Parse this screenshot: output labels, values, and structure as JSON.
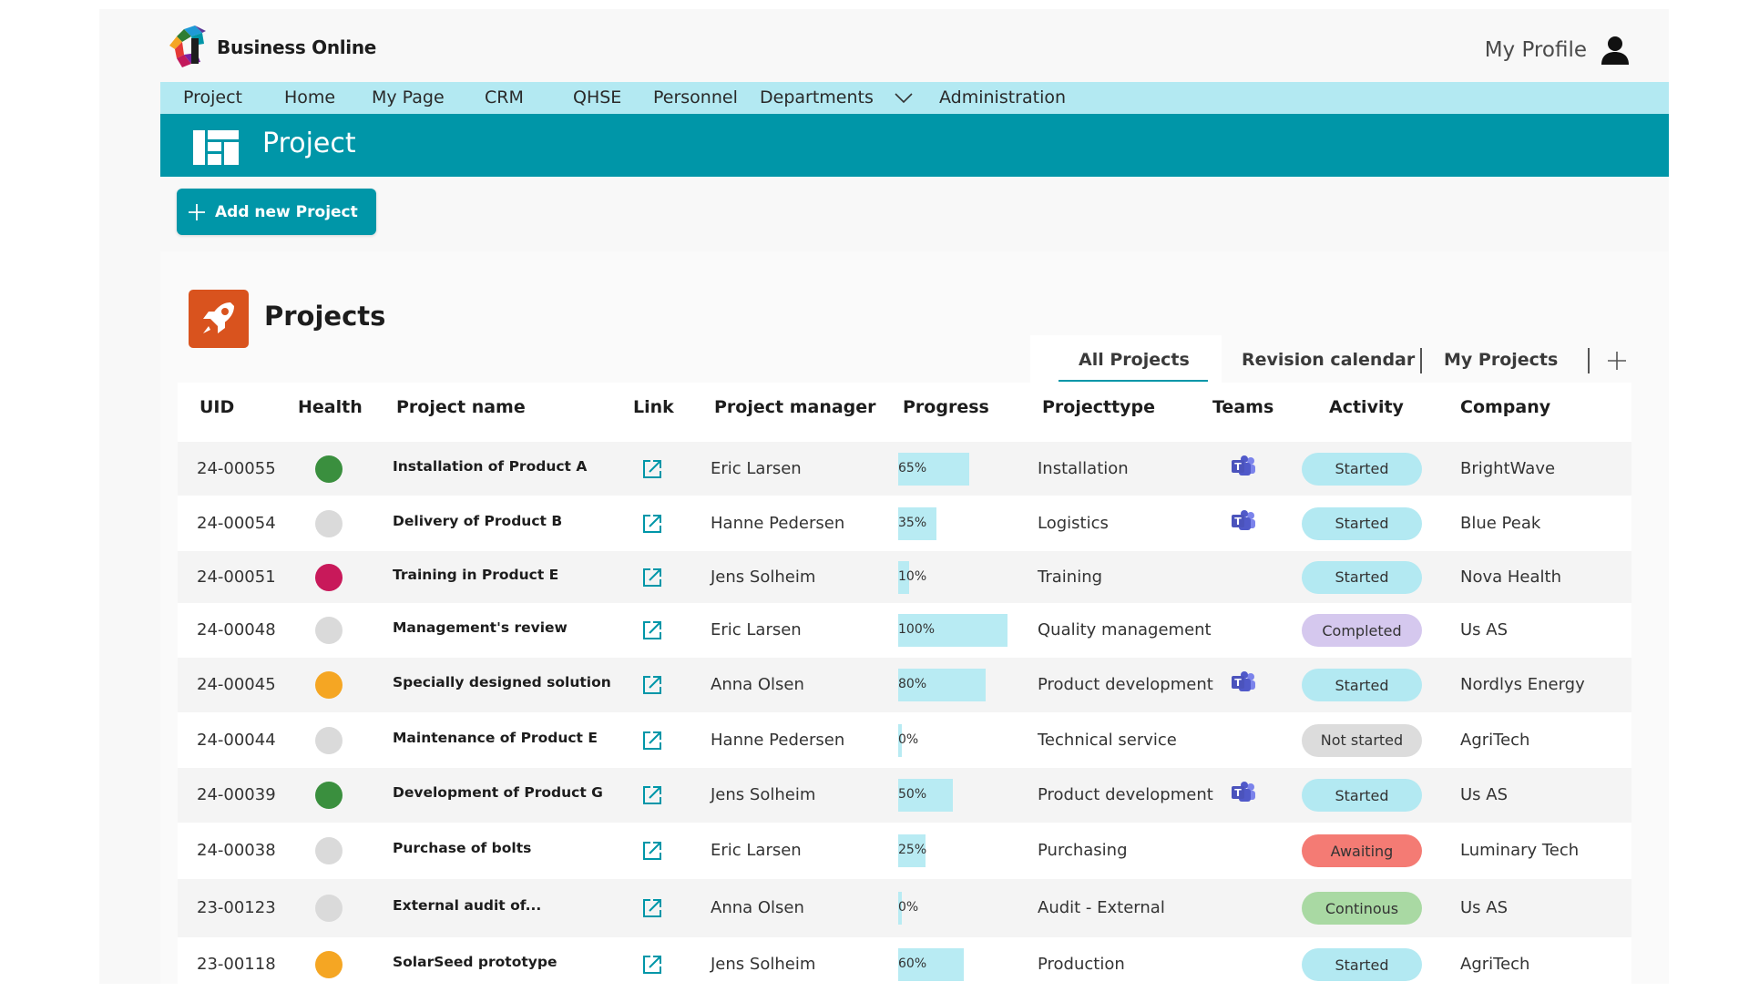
{
  "app": {
    "brand": "Business Online",
    "profile_label": "My Profile"
  },
  "menu": {
    "items": [
      "Project",
      "Home",
      "My Page",
      "CRM",
      "QHSE",
      "Personnel",
      "Departments",
      "Administration"
    ]
  },
  "page": {
    "title": "Project",
    "add_button": "Add new Project",
    "section_title": "Projects"
  },
  "tabs": [
    "All Projects",
    "Revision calendar",
    "My Projects"
  ],
  "table": {
    "headers": [
      "UID",
      "Health",
      "Project name",
      "Link",
      "Project manager",
      "Progress",
      "Projecttype",
      "Teams",
      "Activity",
      "Company"
    ],
    "rows": [
      {
        "uid": "24-00055",
        "health": "#3a8f3e",
        "name": "Installation of Product A",
        "manager": "Eric Larsen",
        "progress": 65,
        "progress_label": "65%",
        "type": "Installation",
        "teams": true,
        "activity": "Started",
        "activity_color": "#b3e9f2",
        "company": "BrightWave"
      },
      {
        "uid": "24-00054",
        "health": "#dadada",
        "name": "Delivery of Product B",
        "manager": "Hanne Pedersen",
        "progress": 35,
        "progress_label": "35%",
        "type": "Logistics",
        "teams": true,
        "activity": "Started",
        "activity_color": "#b3e9f2",
        "company": "Blue Peak"
      },
      {
        "uid": "24-00051",
        "health": "#c8195a",
        "name": "Training in Product E",
        "manager": "Jens Solheim",
        "progress": 10,
        "progress_label": "10%",
        "type": "Training",
        "teams": false,
        "activity": "Started",
        "activity_color": "#b3e9f2",
        "company": "Nova Health"
      },
      {
        "uid": "24-00048",
        "health": "#dadada",
        "name": "Management's review",
        "manager": "Eric Larsen",
        "progress": 100,
        "progress_label": "100%",
        "type": "Quality management",
        "teams": false,
        "activity": "Completed",
        "activity_color": "#d5c8ee",
        "company": "Us AS"
      },
      {
        "uid": "24-00045",
        "health": "#f5a623",
        "name": "Specially designed solution",
        "manager": "Anna Olsen",
        "progress": 80,
        "progress_label": "80%",
        "type": "Product development",
        "teams": true,
        "activity": "Started",
        "activity_color": "#b3e9f2",
        "company": "Nordlys Energy"
      },
      {
        "uid": "24-00044",
        "health": "#dadada",
        "name": "Maintenance of Product E",
        "manager": "Hanne Pedersen",
        "progress": 0,
        "progress_label": "0%",
        "type": "Technical service",
        "teams": false,
        "activity": "Not started",
        "activity_color": "#dcdcdc",
        "company": "AgriTech"
      },
      {
        "uid": "24-00039",
        "health": "#3a8f3e",
        "name": "Development of Product G",
        "manager": "Jens Solheim",
        "progress": 50,
        "progress_label": "50%",
        "type": "Product development",
        "teams": true,
        "activity": "Started",
        "activity_color": "#b3e9f2",
        "company": "Us AS"
      },
      {
        "uid": "24-00038",
        "health": "#dadada",
        "name": "Purchase of bolts",
        "manager": "Eric Larsen",
        "progress": 25,
        "progress_label": "25%",
        "type": "Purchasing",
        "teams": false,
        "activity": "Awaiting",
        "activity_color": "#f47b74",
        "company": "Luminary Tech"
      },
      {
        "uid": "23-00123",
        "health": "#dadada",
        "name": "External audit of...",
        "manager": "Anna Olsen",
        "progress": 0,
        "progress_label": "0%",
        "type": "Audit - External",
        "teams": false,
        "activity": "Continous",
        "activity_color": "#a9d9a3",
        "company": "Us AS"
      },
      {
        "uid": "23-00118",
        "health": "#f5a623",
        "name": "SolarSeed prototype",
        "manager": "Jens Solheim",
        "progress": 60,
        "progress_label": "60%",
        "type": "Production",
        "teams": false,
        "activity": "Started",
        "activity_color": "#b3e9f2",
        "company": "AgriTech"
      }
    ]
  },
  "icons": {
    "link": "external-link-icon",
    "teams": "teams-icon",
    "project": "rocket-icon",
    "page": "grid-layout-icon",
    "profile": "user-icon"
  },
  "colors": {
    "accent": "#0096a8",
    "menu_bg": "#b3e9f2",
    "progress_fill": "#b8ebf3",
    "project_icon": "#d9531e"
  }
}
